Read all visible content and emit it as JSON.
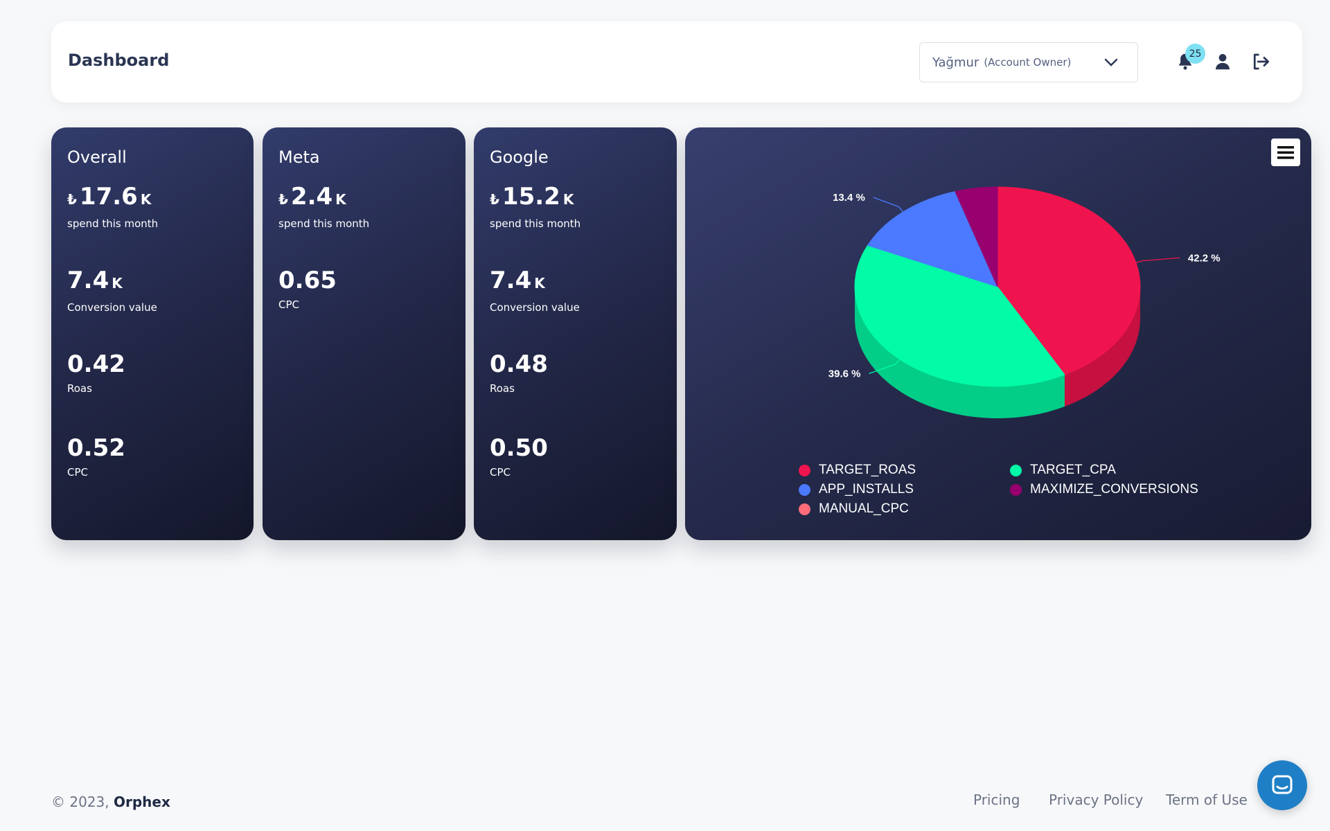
{
  "header": {
    "title": "Dashboard",
    "account": {
      "name": "Yağmur",
      "role": "(Account Owner)"
    },
    "notifications_count": "25"
  },
  "cards": {
    "overall": {
      "title": "Overall",
      "spend": {
        "currency": "₺",
        "value": "17.6",
        "suffix": "K",
        "label": "spend this month"
      },
      "conversion": {
        "value": "7.4",
        "suffix": "K",
        "label": "Conversion value"
      },
      "roas": {
        "value": "0.42",
        "label": "Roas"
      },
      "cpc": {
        "value": "0.52",
        "label": "CPC"
      }
    },
    "meta": {
      "title": "Meta",
      "spend": {
        "currency": "₺",
        "value": "2.4",
        "suffix": "K",
        "label": "spend this month"
      },
      "cpc": {
        "value": "0.65",
        "label": "CPC"
      }
    },
    "google": {
      "title": "Google",
      "spend": {
        "currency": "₺",
        "value": "15.2",
        "suffix": "K",
        "label": "spend this month"
      },
      "conversion": {
        "value": "7.4",
        "suffix": "K",
        "label": "Conversion value"
      },
      "roas": {
        "value": "0.48",
        "label": "Roas"
      },
      "cpc": {
        "value": "0.50",
        "label": "CPC"
      }
    }
  },
  "chart_data": {
    "type": "pie",
    "title": "",
    "slices": [
      {
        "name": "TARGET_ROAS",
        "value": 42.2,
        "label": "42.2 %",
        "color": "#f0144e"
      },
      {
        "name": "TARGET_CPA",
        "value": 39.6,
        "label": "39.6 %",
        "color": "#02fba6"
      },
      {
        "name": "APP_INSTALLS",
        "value": 13.4,
        "label": "13.4 %",
        "color": "#4b79ff"
      },
      {
        "name": "MAXIMIZE_CONVERSIONS",
        "value": 4.8,
        "label": "",
        "color": "#97006e"
      },
      {
        "name": "MANUAL_CPC",
        "value": 0,
        "label": "",
        "color": "#ff6d7a"
      }
    ],
    "legend_placement": "bottom"
  },
  "footer": {
    "copyright": "© 2023,",
    "brand": "Orphex",
    "links": [
      "Pricing",
      "Privacy Policy",
      "Term of Use"
    ]
  },
  "icons": {
    "bell": "bell-icon",
    "user": "user-icon",
    "logout": "logout-icon",
    "menu": "hamburger-menu-icon",
    "chat": "chat-icon",
    "chevron": "chevron-down-icon"
  }
}
